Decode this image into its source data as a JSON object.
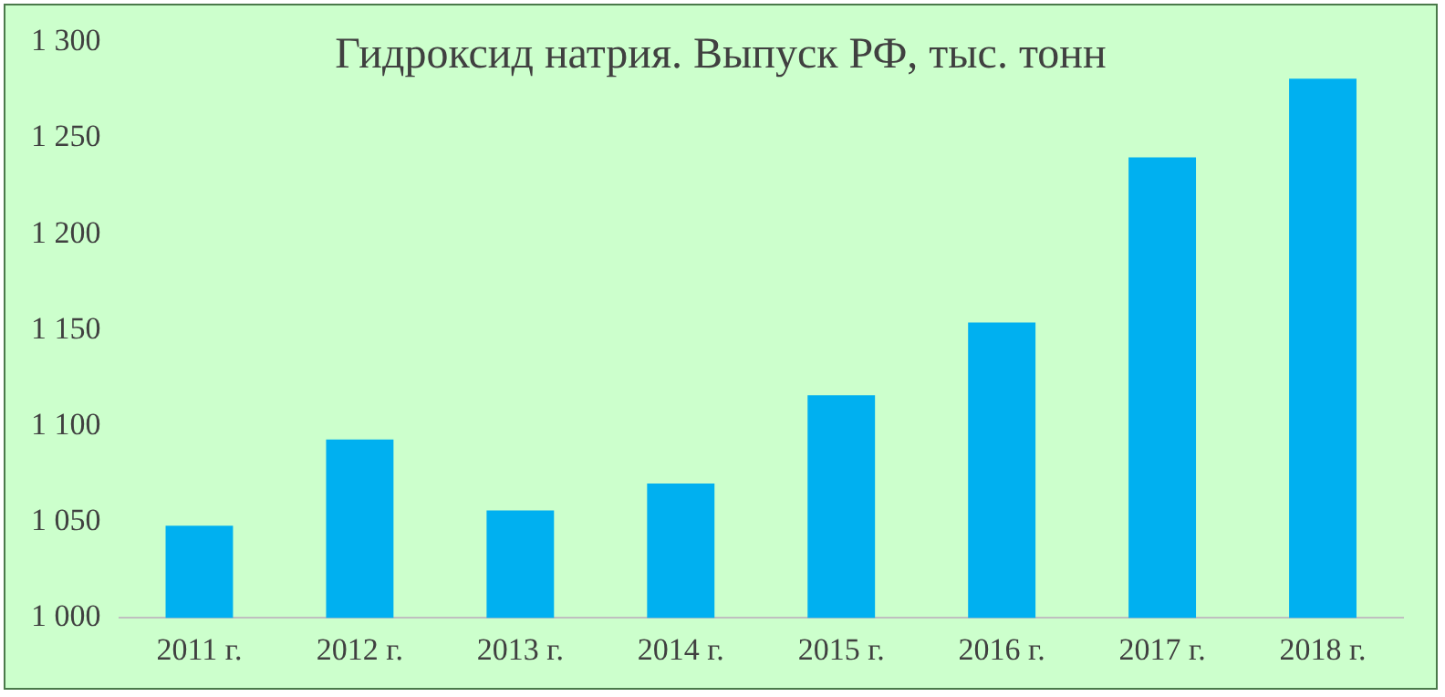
{
  "chart_data": {
    "type": "bar",
    "title": "Гидроксид натрия. Выпуск РФ, тыс. тонн",
    "categories": [
      "2011 г.",
      "2012 г.",
      "2013 г.",
      "2014 г.",
      "2015 г.",
      "2016 г.",
      "2017 г.",
      "2018 г."
    ],
    "values": [
      1048,
      1093,
      1056,
      1070,
      1116,
      1154,
      1240,
      1281
    ],
    "color": "#00b0f0",
    "ylim": [
      1000,
      1300
    ],
    "yticks": [
      {
        "value": 1000,
        "label": "1 000"
      },
      {
        "value": 1050,
        "label": "1 050"
      },
      {
        "value": 1100,
        "label": "1 100"
      },
      {
        "value": 1150,
        "label": "1 150"
      },
      {
        "value": 1200,
        "label": "1 200"
      },
      {
        "value": 1250,
        "label": "1 250"
      },
      {
        "value": 1300,
        "label": "1 300"
      }
    ],
    "grid": false
  }
}
